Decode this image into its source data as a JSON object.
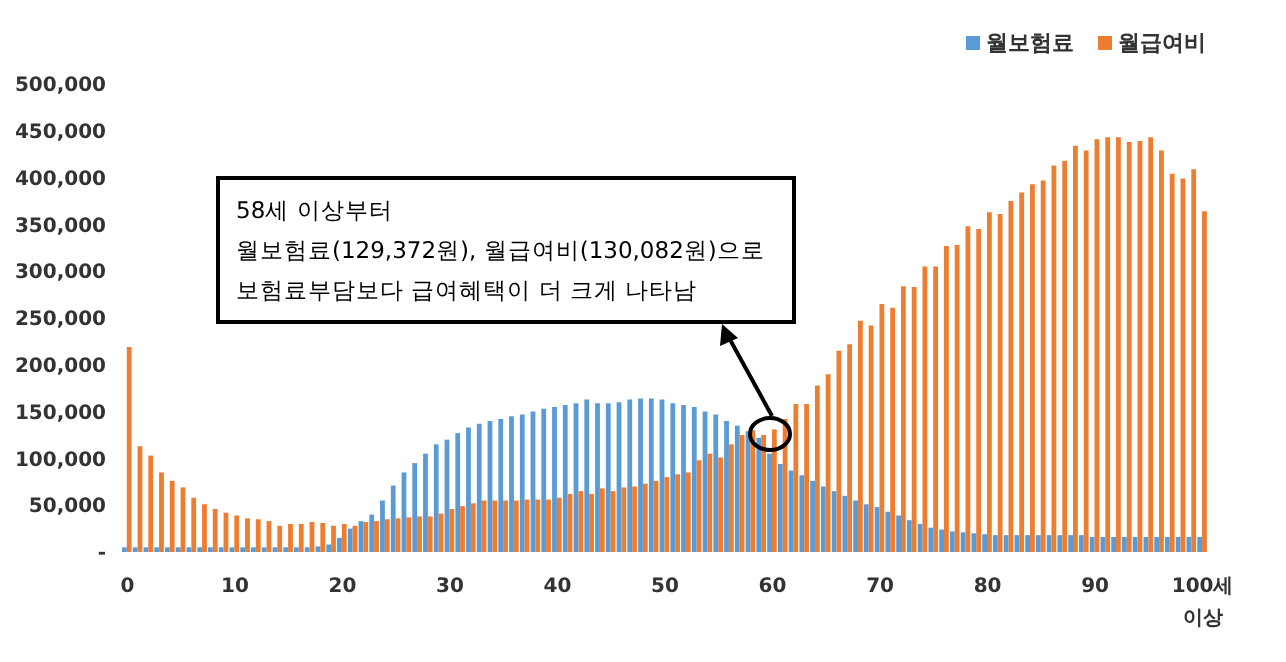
{
  "chart_data": {
    "type": "bar",
    "categories": [
      "0",
      null,
      null,
      null,
      null,
      null,
      null,
      null,
      null,
      null,
      "10",
      null,
      null,
      null,
      null,
      null,
      null,
      null,
      null,
      null,
      "20",
      null,
      null,
      null,
      null,
      null,
      null,
      null,
      null,
      null,
      "30",
      null,
      null,
      null,
      null,
      null,
      null,
      null,
      null,
      null,
      "40",
      null,
      null,
      null,
      null,
      null,
      null,
      null,
      null,
      null,
      "50",
      null,
      null,
      null,
      null,
      null,
      null,
      null,
      null,
      null,
      "60",
      null,
      null,
      null,
      null,
      null,
      null,
      null,
      null,
      null,
      "70",
      null,
      null,
      null,
      null,
      null,
      null,
      null,
      null,
      null,
      "80",
      null,
      null,
      null,
      null,
      null,
      null,
      null,
      null,
      null,
      "90",
      null,
      null,
      null,
      null,
      null,
      null,
      null,
      null,
      null,
      "100세 이상"
    ],
    "series": [
      {
        "name": "월보험료",
        "color": "#5b9bd5",
        "values": [
          5000,
          5000,
          5000,
          5000,
          5000,
          5000,
          5000,
          5000,
          5000,
          5000,
          5000,
          5000,
          5000,
          5000,
          5000,
          5000,
          5000,
          5000,
          6000,
          8000,
          15000,
          25000,
          33000,
          40000,
          55000,
          71000,
          85000,
          95000,
          105000,
          115000,
          120000,
          127000,
          133000,
          137000,
          140000,
          142000,
          145000,
          147000,
          150000,
          153000,
          155000,
          157000,
          159000,
          163000,
          159000,
          159000,
          160000,
          163000,
          164000,
          164000,
          163000,
          159000,
          157000,
          155000,
          150000,
          147000,
          140000,
          135000,
          129000,
          122000,
          105000,
          94000,
          87000,
          82000,
          76000,
          70000,
          65000,
          60000,
          55000,
          51000,
          48000,
          43000,
          39000,
          34000,
          30000,
          26000,
          24000,
          22000,
          21000,
          20000,
          19000,
          18000,
          18000,
          18000,
          18000,
          18000,
          18000,
          18000,
          18000,
          18000,
          16000,
          16000,
          16000,
          16000,
          16000,
          16000,
          16000,
          16000,
          16000,
          16000,
          16000
        ]
      },
      {
        "name": "월급여비",
        "color": "#ed7d31",
        "values": [
          219000,
          113000,
          103000,
          85000,
          76000,
          69000,
          58000,
          51000,
          46000,
          42000,
          39000,
          36000,
          35000,
          33000,
          28000,
          30000,
          30000,
          32000,
          31000,
          28000,
          30000,
          28000,
          32000,
          33000,
          35000,
          36000,
          37000,
          38000,
          38000,
          41000,
          46000,
          49000,
          52000,
          55000,
          55000,
          55000,
          55000,
          56000,
          56000,
          56000,
          58000,
          62000,
          65000,
          62000,
          68000,
          65000,
          69000,
          70000,
          73000,
          76000,
          80000,
          83000,
          85000,
          98000,
          105000,
          101000,
          115000,
          125000,
          130000,
          125000,
          131000,
          142000,
          158000,
          158000,
          178000,
          190000,
          215000,
          222000,
          247000,
          242000,
          265000,
          261000,
          284000,
          283000,
          305000,
          305000,
          327000,
          328000,
          348000,
          345000,
          363000,
          361000,
          375000,
          384000,
          393000,
          397000,
          413000,
          418000,
          434000,
          429000,
          441000,
          443000,
          443000,
          438000,
          439000,
          443000,
          429000,
          404000,
          399000,
          409000,
          364000
        ]
      }
    ],
    "ylim": [
      0,
      500000
    ],
    "yticks": [
      {
        "value": 0,
        "label": "-"
      },
      {
        "value": 50000,
        "label": "50,000"
      },
      {
        "value": 100000,
        "label": "100,000"
      },
      {
        "value": 150000,
        "label": "150,000"
      },
      {
        "value": 200000,
        "label": "200,000"
      },
      {
        "value": 250000,
        "label": "250,000"
      },
      {
        "value": 300000,
        "label": "300,000"
      },
      {
        "value": 350000,
        "label": "350,000"
      },
      {
        "value": 400000,
        "label": "400,000"
      },
      {
        "value": 450000,
        "label": "450,000"
      },
      {
        "value": 500000,
        "label": "500,000"
      }
    ],
    "legend": "top right",
    "annotations": [
      "58세 이상부터\n월보험료(129,372원), 월급여비(130,082원)으로\n보험료부담보다 급여혜택이 더 크게 나타남"
    ]
  }
}
